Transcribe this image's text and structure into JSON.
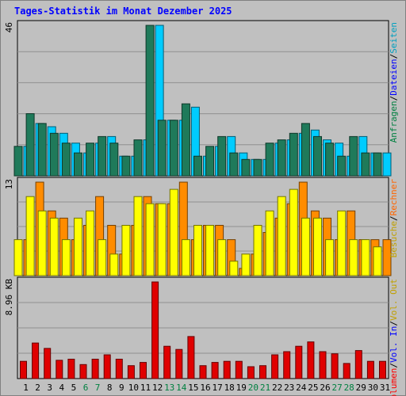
{
  "title": "Tages-Statistik im Monat Dezember 2025",
  "chart_data": [
    {
      "type": "bar",
      "panel": "top",
      "ymax_label": "46",
      "ylim": [
        0,
        46
      ],
      "series": [
        {
          "name": "Anfragen",
          "color": "#1f7a5a",
          "values": [
            9,
            19,
            16,
            13,
            10,
            7,
            10,
            12,
            10,
            6,
            11,
            46,
            17,
            17,
            22,
            6,
            9,
            12,
            7,
            5,
            5,
            10,
            11,
            13,
            16,
            12,
            10,
            6,
            12,
            7,
            7
          ]
        },
        {
          "name": "Seiten",
          "color": "#00ccff",
          "values": [
            9,
            16,
            15,
            13,
            10,
            7,
            10,
            12,
            6,
            6,
            11,
            46,
            17,
            17,
            21,
            6,
            9,
            12,
            7,
            5,
            5,
            10,
            11,
            13,
            14,
            11,
            10,
            6,
            12,
            7,
            7
          ]
        }
      ],
      "legend": [
        {
          "text": "Anfragen",
          "color": "#008040"
        },
        {
          "text": "/",
          "color": "#000000"
        },
        {
          "text": "Dateien",
          "color": "#0000ff"
        },
        {
          "text": "/",
          "color": "#000000"
        },
        {
          "text": "Seiten",
          "color": "#00a0c0"
        }
      ]
    },
    {
      "type": "bar",
      "panel": "middle",
      "ymax_label": "13",
      "ylim": [
        0,
        13
      ],
      "series": [
        {
          "name": "Besuche",
          "color": "#ffff00",
          "values": [
            5,
            11,
            9,
            8,
            5,
            8,
            9,
            5,
            3,
            7,
            11,
            10,
            10,
            12,
            5,
            7,
            7,
            5,
            2,
            3,
            7,
            9,
            11,
            12,
            8,
            8,
            5,
            9,
            5,
            5,
            4
          ]
        },
        {
          "name": "Rechner",
          "color": "#ff8c00",
          "values": [
            5,
            13,
            9,
            8,
            5,
            7,
            11,
            7,
            3,
            7,
            11,
            10,
            10,
            13,
            5,
            7,
            7,
            5,
            1,
            3,
            6,
            8,
            10,
            13,
            9,
            8,
            5,
            9,
            5,
            5,
            5
          ]
        }
      ],
      "legend": [
        {
          "text": "Besuche",
          "color": "#c0a000"
        },
        {
          "text": "/",
          "color": "#000000"
        },
        {
          "text": "Rechner",
          "color": "#ff6600"
        }
      ]
    },
    {
      "type": "bar",
      "panel": "bottom",
      "ymax_label": "8.96 KB",
      "ylim": [
        0,
        8.96
      ],
      "series": [
        {
          "name": "Volumen",
          "color": "#e00000",
          "values": [
            1.6,
            3.3,
            2.8,
            1.7,
            1.8,
            1.3,
            1.8,
            2.2,
            1.8,
            1.2,
            1.5,
            8.96,
            3.0,
            2.7,
            3.9,
            1.2,
            1.5,
            1.6,
            1.6,
            1.1,
            1.2,
            2.2,
            2.5,
            3.0,
            3.4,
            2.5,
            2.3,
            1.4,
            2.6,
            1.6,
            1.6
          ]
        }
      ],
      "legend": [
        {
          "text": "Volumen",
          "color": "#ff0000"
        },
        {
          "text": "/",
          "color": "#000000"
        },
        {
          "text": "Vol. In",
          "color": "#0000ff"
        },
        {
          "text": "/",
          "color": "#000000"
        },
        {
          "text": "Vol. Out",
          "color": "#c0a000"
        }
      ]
    }
  ],
  "x_days": [
    "1",
    "2",
    "3",
    "4",
    "5",
    "6",
    "7",
    "8",
    "9",
    "10",
    "11",
    "12",
    "13",
    "14",
    "15",
    "16",
    "17",
    "18",
    "19",
    "20",
    "21",
    "22",
    "23",
    "24",
    "25",
    "26",
    "27",
    "28",
    "29",
    "30",
    "31"
  ],
  "weekend_days": [
    "6",
    "7",
    "13",
    "14",
    "20",
    "21",
    "27",
    "28"
  ],
  "weekday_color": "#000000",
  "weekend_color": "#008040"
}
